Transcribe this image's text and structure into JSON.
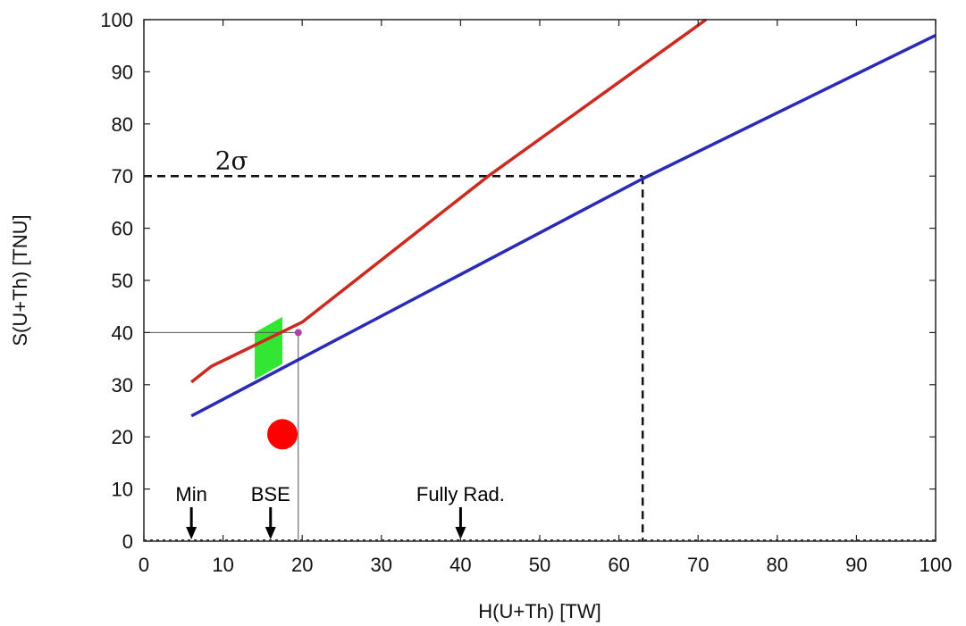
{
  "chart_data": {
    "type": "line",
    "title": "",
    "xlabel": "H(U+Th) [TW]",
    "ylabel": "S(U+Th) [TNU]",
    "xlim": [
      0,
      100
    ],
    "ylim": [
      0,
      100
    ],
    "x_ticks": [
      "0",
      "10",
      "20",
      "30",
      "40",
      "50",
      "60",
      "70",
      "80",
      "90",
      "100"
    ],
    "y_ticks": [
      "0",
      "10",
      "20",
      "30",
      "40",
      "50",
      "60",
      "70",
      "80",
      "90",
      "100"
    ],
    "grid": false,
    "series": [
      {
        "color": "#cc2a1e",
        "points": [
          [
            6,
            30.5
          ],
          [
            8.5,
            33.5
          ],
          [
            20,
            42
          ],
          [
            43.5,
            70
          ],
          [
            71,
            100
          ]
        ]
      },
      {
        "color": "#2a2ab8",
        "points": [
          [
            6,
            24
          ],
          [
            63,
            69.5
          ],
          [
            100,
            97
          ]
        ]
      }
    ],
    "reference_lines": [
      {
        "style": "dashed",
        "points": [
          [
            0,
            70
          ],
          [
            63,
            70
          ]
        ]
      },
      {
        "style": "dashed",
        "points": [
          [
            63,
            70
          ],
          [
            63,
            0
          ]
        ]
      },
      {
        "style": "thin",
        "points": [
          [
            0,
            40
          ],
          [
            19.5,
            40
          ]
        ]
      },
      {
        "style": "thin",
        "points": [
          [
            19.5,
            40
          ],
          [
            19.5,
            0
          ]
        ]
      }
    ],
    "shaded_region": {
      "color": "#33e633",
      "points": [
        [
          14,
          31
        ],
        [
          14,
          40
        ],
        [
          17.5,
          43
        ],
        [
          17.5,
          34
        ]
      ]
    },
    "point_markers": [
      {
        "x": 19.5,
        "y": 40,
        "color": "#b040b0",
        "size": "small"
      },
      {
        "x": 17.5,
        "y": 20.5,
        "color": "#ff0000",
        "size": "large"
      }
    ],
    "sigma_annotation": {
      "text": "2σ",
      "x": 9,
      "y": 73
    },
    "arrow_markers": [
      {
        "label": "Min",
        "x": 6
      },
      {
        "label": "BSE",
        "x": 16
      },
      {
        "label": "Fully Rad.",
        "x": 40
      }
    ]
  }
}
